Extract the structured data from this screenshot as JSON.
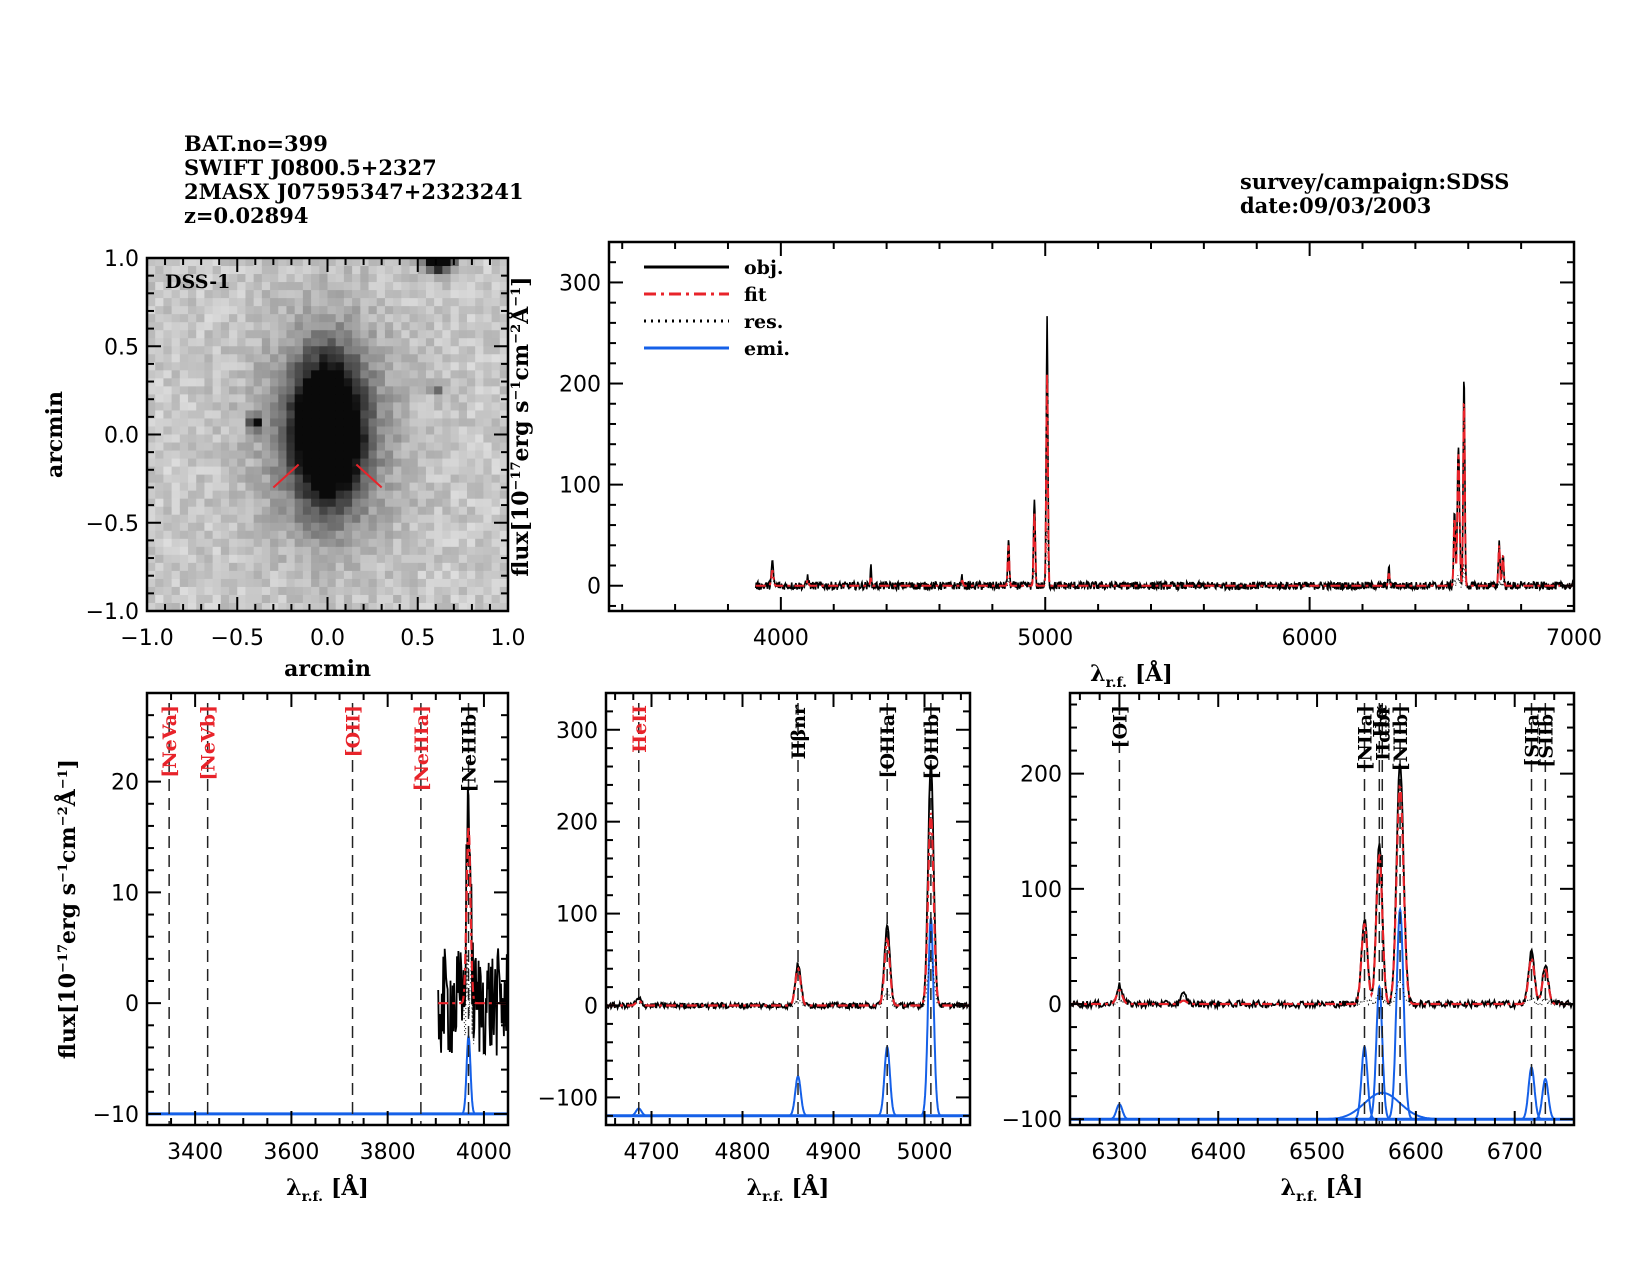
{
  "header": {
    "left_lines": [
      "BAT.no=399",
      "SWIFT J0800.5+2327",
      "2MASX J07595347+2323241",
      "z=0.02894"
    ],
    "right_lines": [
      "survey/campaign:SDSS",
      "date:09/03/2003"
    ]
  },
  "colors": {
    "obj": "#000000",
    "fit": "#e8232a",
    "res": "#000000",
    "emi": "#1560e8",
    "marker_red": "#e8232a",
    "label_red": "#e8232a"
  },
  "chart_data": [
    {
      "type": "image",
      "id": "image-panel",
      "label": "DSS-1",
      "xlabel": "arcmin",
      "ylabel": "arcmin",
      "xlim": [
        -1.0,
        1.0
      ],
      "ylim": [
        -1.0,
        1.0
      ],
      "xticks": [
        "-1.0",
        "-0.5",
        "0.0",
        "0.5",
        "1.0"
      ],
      "yticks": [
        "-1.0",
        "-0.5",
        "0.0",
        "0.5",
        "1.0"
      ],
      "xtick_values": [
        -1.0,
        -0.5,
        0.0,
        0.5,
        1.0
      ],
      "ytick_values": [
        -1.0,
        -0.5,
        0.0,
        0.5,
        1.0
      ],
      "sources": [
        {
          "name": "target-galaxy",
          "x": 0.0,
          "y": 0.02,
          "rx": 0.12,
          "ry": 0.25,
          "intensity": 1.0
        },
        {
          "name": "star-top",
          "x": 0.62,
          "y": 0.98,
          "rx": 0.07,
          "ry": 0.05,
          "intensity": 0.95
        },
        {
          "name": "star-left",
          "x": -0.4,
          "y": 0.07,
          "rx": 0.03,
          "ry": 0.03,
          "intensity": 0.8
        },
        {
          "name": "star-right",
          "x": 0.6,
          "y": 0.26,
          "rx": 0.025,
          "ry": 0.025,
          "intensity": 0.5
        }
      ],
      "markers": [
        {
          "x1": -0.3,
          "y1": -0.3,
          "x2": -0.16,
          "y2": -0.17
        },
        {
          "x1": 0.16,
          "y1": -0.17,
          "x2": 0.3,
          "y2": -0.3
        }
      ]
    },
    {
      "type": "line",
      "id": "full-spectrum",
      "xlabel": "λr.f. [Å]",
      "xlabel_main": "λ",
      "xlabel_sub": "r.f.",
      "xlabel_unit": "[Å]",
      "ylabel": "flux[10^-17 erg s^-1 cm^-2 Å^-1]",
      "xlim": [
        3350,
        7000
      ],
      "ylim": [
        -25,
        340
      ],
      "xticks": [
        "4000",
        "5000",
        "6000",
        "7000"
      ],
      "xtick_values": [
        4000,
        5000,
        6000,
        7000
      ],
      "yticks": [
        "0",
        "100",
        "200",
        "300"
      ],
      "ytick_values": [
        0,
        100,
        200,
        300
      ],
      "legend": [
        {
          "label": "obj.",
          "style": "solid",
          "color": "#000000"
        },
        {
          "label": "fit",
          "style": "dashdot",
          "color": "#e8232a"
        },
        {
          "label": "res.",
          "style": "dotted",
          "color": "#000000"
        },
        {
          "label": "emi.",
          "style": "solid",
          "color": "#1560e8"
        }
      ],
      "legend_position": "top-left",
      "data_range": [
        3905,
        7000
      ],
      "peaks": [
        {
          "x": 3968,
          "obj": 22,
          "fit": 15,
          "sigma": 4
        },
        {
          "x": 4102,
          "obj": 10,
          "fit": 6,
          "sigma": 3
        },
        {
          "x": 4340,
          "obj": 22,
          "fit": 8,
          "sigma": 2
        },
        {
          "x": 4686,
          "obj": 8,
          "fit": 5,
          "sigma": 3
        },
        {
          "x": 4861,
          "obj": 45,
          "fit": 40,
          "sigma": 3
        },
        {
          "x": 4959,
          "obj": 87,
          "fit": 72,
          "sigma": 3
        },
        {
          "x": 5007,
          "obj": 266,
          "fit": 210,
          "sigma": 3
        },
        {
          "x": 6300,
          "obj": 16,
          "fit": 12,
          "sigma": 3
        },
        {
          "x": 6548,
          "obj": 75,
          "fit": 70,
          "sigma": 3
        },
        {
          "x": 6563,
          "obj": 140,
          "fit": 130,
          "sigma": 4
        },
        {
          "x": 6584,
          "obj": 210,
          "fit": 190,
          "sigma": 3
        },
        {
          "x": 6717,
          "obj": 45,
          "fit": 40,
          "sigma": 3
        },
        {
          "x": 6731,
          "obj": 33,
          "fit": 30,
          "sigma": 3
        }
      ],
      "noise_amplitude": 4
    },
    {
      "type": "line",
      "id": "zoom-neon",
      "xlabel": "λr.f. [Å]",
      "ylabel": "flux[10^-17 erg s^-1 cm^-2 Å^-1]",
      "xlim": [
        3300,
        4050
      ],
      "ylim": [
        -11,
        28
      ],
      "xticks": [
        "3400",
        "3600",
        "3800",
        "4000"
      ],
      "xtick_values": [
        3400,
        3600,
        3800,
        4000
      ],
      "yticks": [
        "-10",
        "0",
        "10",
        "20"
      ],
      "ytick_values": [
        -10,
        0,
        10,
        20
      ],
      "data_range": [
        3905,
        4050
      ],
      "emi_baseline": -10,
      "lines": [
        {
          "label": "[NeVa]",
          "x": 3346,
          "color": "red"
        },
        {
          "label": "[NeVb]",
          "x": 3426,
          "color": "red"
        },
        {
          "label": "[OII]",
          "x": 3727,
          "color": "red"
        },
        {
          "label": "[NeIIIa]",
          "x": 3869,
          "color": "red"
        },
        {
          "label": "[NeIIIb]",
          "x": 3968,
          "color": "black"
        }
      ],
      "peaks": [
        {
          "x": 3968,
          "obj": 19,
          "fit": 16,
          "emi": 7,
          "sigma": 4
        }
      ],
      "noise_amplitude": 5
    },
    {
      "type": "line",
      "id": "zoom-hbeta-oiii",
      "xlabel": "λr.f. [Å]",
      "ylabel": "",
      "xlim": [
        4650,
        5050
      ],
      "ylim": [
        -130,
        340
      ],
      "xticks": [
        "4700",
        "4800",
        "4900",
        "5000"
      ],
      "xtick_values": [
        4700,
        4800,
        4900,
        5000
      ],
      "yticks": [
        "-100",
        "0",
        "100",
        "200",
        "300"
      ],
      "ytick_values": [
        -100,
        0,
        100,
        200,
        300
      ],
      "data_range": [
        4650,
        5050
      ],
      "emi_baseline": -120,
      "lines": [
        {
          "label": "HeII",
          "x": 4686,
          "color": "red"
        },
        {
          "label": "Hβnr",
          "x": 4861,
          "color": "black"
        },
        {
          "label": "[OIIIa]",
          "x": 4959,
          "color": "black"
        },
        {
          "label": "[OIIIb]",
          "x": 5007,
          "color": "black"
        }
      ],
      "peaks": [
        {
          "x": 4686,
          "obj": 7,
          "fit": 5,
          "emi": 8,
          "sigma": 3
        },
        {
          "x": 4861,
          "obj": 45,
          "fit": 40,
          "emi": 43,
          "sigma": 3
        },
        {
          "x": 4959,
          "obj": 87,
          "fit": 72,
          "emi": 75,
          "sigma": 3
        },
        {
          "x": 5007,
          "obj": 266,
          "fit": 210,
          "emi": 215,
          "sigma": 3
        }
      ],
      "noise_amplitude": 3
    },
    {
      "type": "line",
      "id": "zoom-halpha",
      "xlabel": "λr.f. [Å]",
      "ylabel": "",
      "xlim": [
        6250,
        6760
      ],
      "ylim": [
        -105,
        270
      ],
      "xticks": [
        "6300",
        "6400",
        "6500",
        "6600",
        "6700"
      ],
      "xtick_values": [
        6300,
        6400,
        6500,
        6600,
        6700
      ],
      "yticks": [
        "-100",
        "0",
        "100",
        "200"
      ],
      "ytick_values": [
        -100,
        0,
        100,
        200
      ],
      "data_range": [
        6250,
        6760
      ],
      "emi_baseline": -100,
      "lines": [
        {
          "label": "[OI]",
          "x": 6300,
          "color": "black"
        },
        {
          "label": "[NIIa]",
          "x": 6548,
          "color": "black"
        },
        {
          "label": "Hα",
          "x": 6563,
          "color": "black"
        },
        {
          "label": "Hαbr",
          "x": 6566,
          "color": "black"
        },
        {
          "label": "[NIIb]",
          "x": 6584,
          "color": "black"
        },
        {
          "label": "[SIIa]",
          "x": 6717,
          "color": "black"
        },
        {
          "label": "[SIIb]",
          "x": 6731,
          "color": "black"
        }
      ],
      "peaks": [
        {
          "x": 6300,
          "obj": 16,
          "fit": 12,
          "emi": 13,
          "sigma": 3
        },
        {
          "x": 6365,
          "obj": 8,
          "fit": 3,
          "emi": 0,
          "sigma": 3
        },
        {
          "x": 6548,
          "obj": 75,
          "fit": 70,
          "emi": 63,
          "sigma": 3
        },
        {
          "x": 6563,
          "obj": 140,
          "fit": 130,
          "emi": 115,
          "sigma": 3
        },
        {
          "x": 6584,
          "obj": 210,
          "fit": 190,
          "emi": 182,
          "sigma": 3.5
        },
        {
          "x": 6717,
          "obj": 45,
          "fit": 40,
          "emi": 45,
          "sigma": 3
        },
        {
          "x": 6731,
          "obj": 33,
          "fit": 30,
          "emi": 35,
          "sigma": 3
        }
      ],
      "broad": {
        "x": 6566,
        "emi": 23,
        "sigma": 18,
        "fit": 20
      },
      "noise_amplitude": 3
    }
  ]
}
